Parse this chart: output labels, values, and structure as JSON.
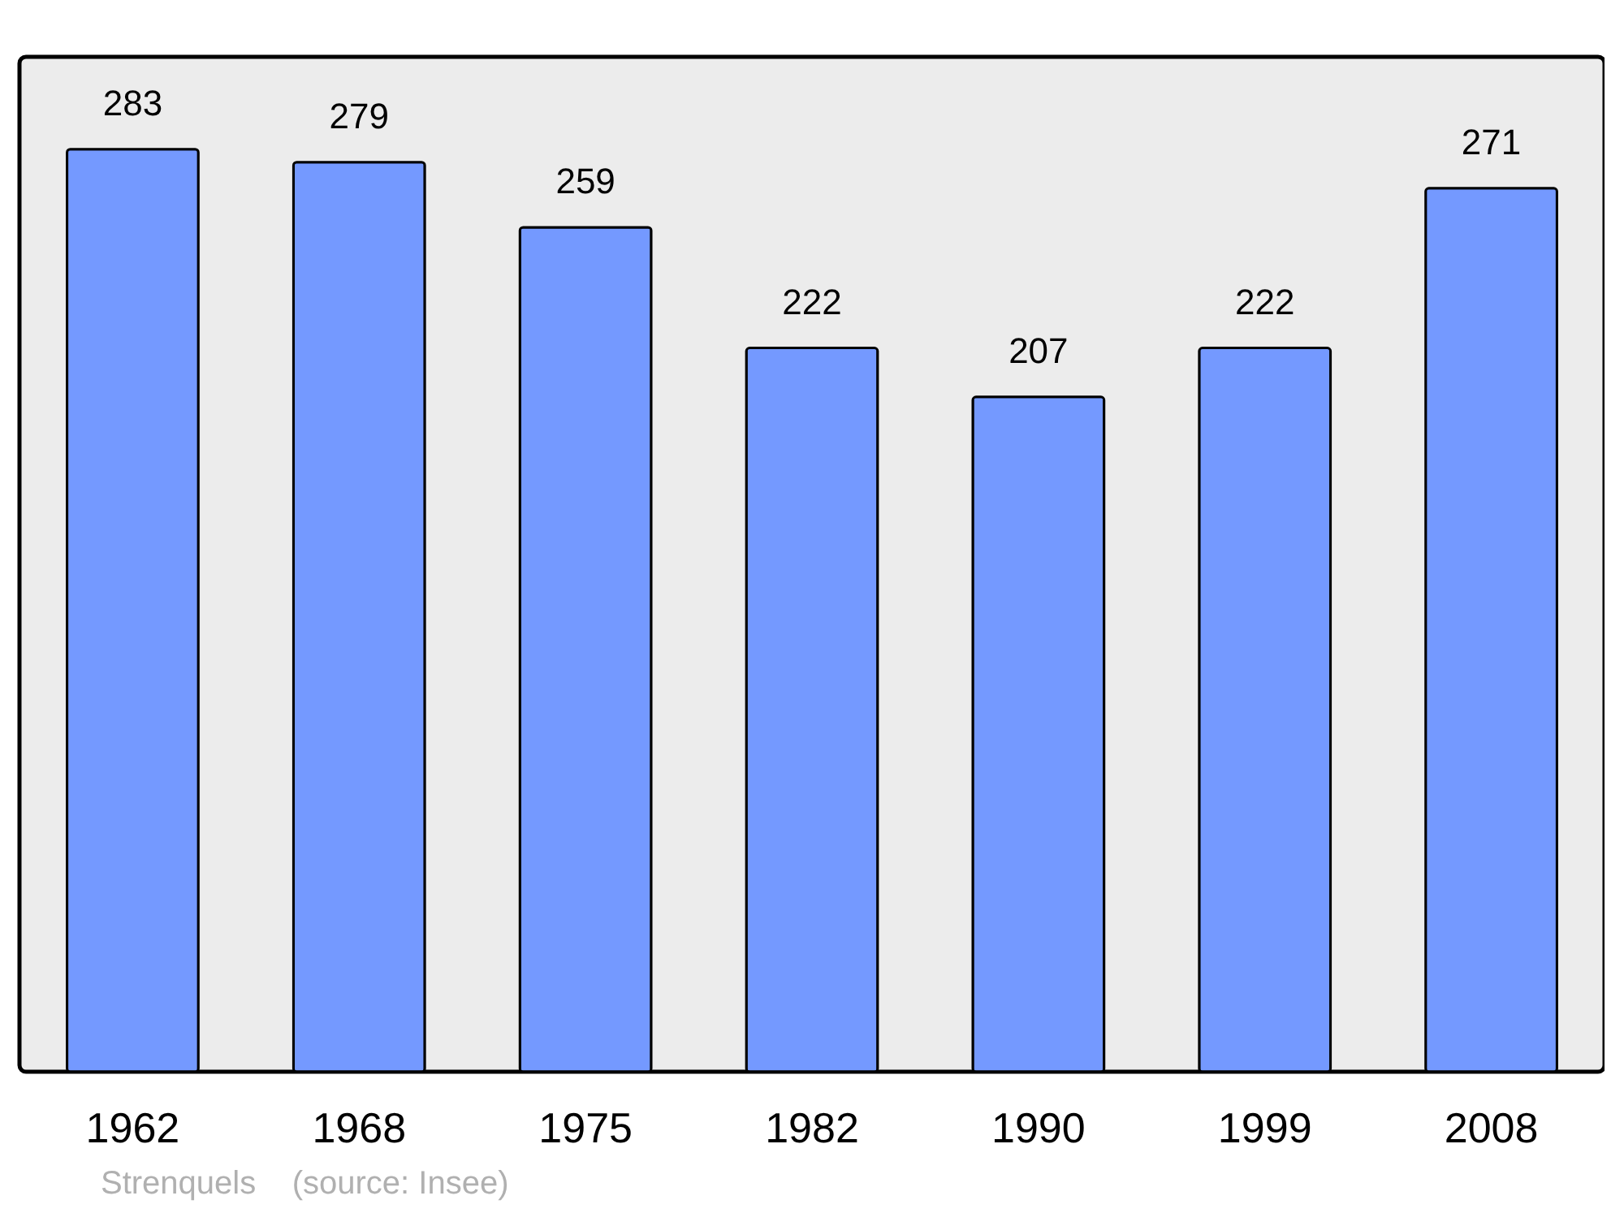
{
  "chart_data": {
    "type": "bar",
    "categories": [
      "1962",
      "1968",
      "1975",
      "1982",
      "1990",
      "1999",
      "2008"
    ],
    "values": [
      283,
      279,
      259,
      222,
      207,
      222,
      271
    ],
    "color": "#7499ff",
    "data_labels": true,
    "tick_labels": "x",
    "annotations": [
      "Strenquels    (source: Insee)"
    ]
  }
}
